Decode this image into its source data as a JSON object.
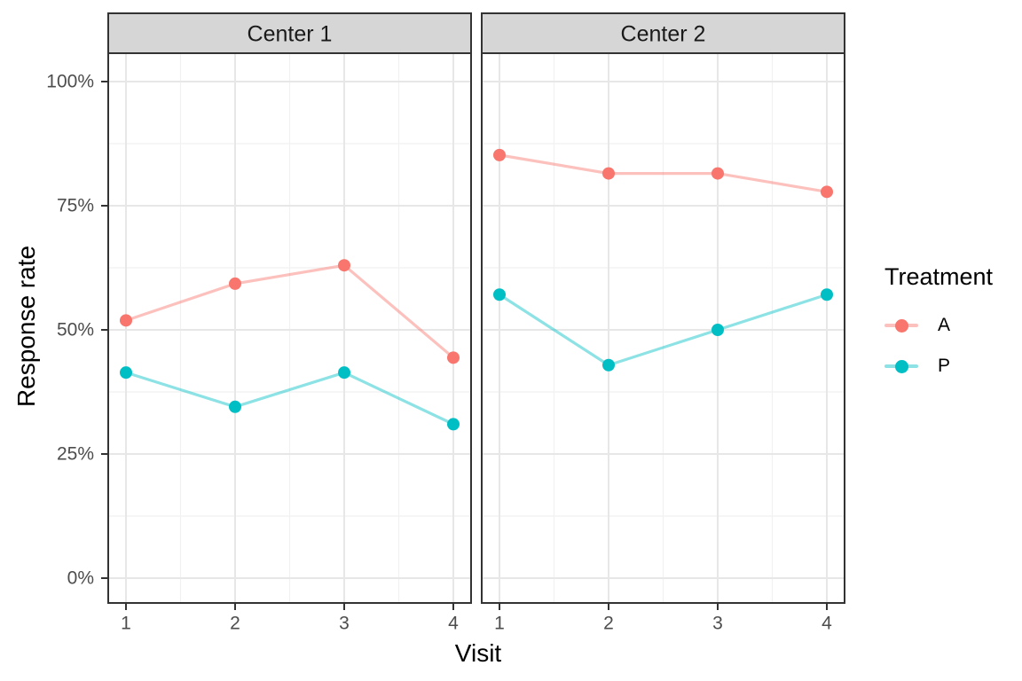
{
  "figure": {
    "background": "#FFFFFF"
  },
  "x_axis": {
    "title": "Visit",
    "tick_labels": [
      "1",
      "2",
      "3",
      "4"
    ],
    "tick_values": [
      1,
      2,
      3,
      4
    ]
  },
  "y_axis": {
    "title": "Response rate",
    "tick_labels": [
      "0%",
      "25%",
      "50%",
      "75%",
      "100%"
    ],
    "tick_values_pct": [
      0,
      25,
      50,
      75,
      100
    ]
  },
  "legend": {
    "title": "Treatment",
    "entries": [
      {
        "label": "A",
        "color": "#F8766D"
      },
      {
        "label": "P",
        "color": "#00BFC4"
      }
    ]
  },
  "style": {
    "accent_a": "#F8766D",
    "accent_p": "#00BFC4",
    "line_opacity": 0.45,
    "strip_bg": "#D6D6D6",
    "panel_border": "#333333",
    "grid_major": "#E7E7E7",
    "grid_minor": "#F1F1F1",
    "tick_label_color": "#4D4D4D"
  },
  "chart_data": {
    "type": "line",
    "faceted": true,
    "title": "",
    "xlabel": "Visit",
    "ylabel": "Response rate",
    "x": [
      1,
      2,
      3,
      4
    ],
    "x_ticks": [
      1,
      2,
      3,
      4
    ],
    "y_unit": "percent",
    "ylim": [
      0,
      100
    ],
    "y_ticks_pct": [
      0,
      25,
      50,
      75,
      100
    ],
    "grid": true,
    "legend_title": "Treatment",
    "legend_position": "right",
    "facets": [
      {
        "name": "Center 1",
        "series": [
          {
            "name": "A",
            "color": "#F8766D",
            "values_pct": [
              51.9,
              59.3,
              63.0,
              44.4
            ]
          },
          {
            "name": "P",
            "color": "#00BFC4",
            "values_pct": [
              41.4,
              34.5,
              41.4,
              31.0
            ]
          }
        ]
      },
      {
        "name": "Center 2",
        "series": [
          {
            "name": "A",
            "color": "#F8766D",
            "values_pct": [
              85.2,
              81.5,
              81.5,
              77.8
            ]
          },
          {
            "name": "P",
            "color": "#00BFC4",
            "values_pct": [
              57.1,
              42.9,
              50.0,
              57.1
            ]
          }
        ]
      }
    ]
  }
}
